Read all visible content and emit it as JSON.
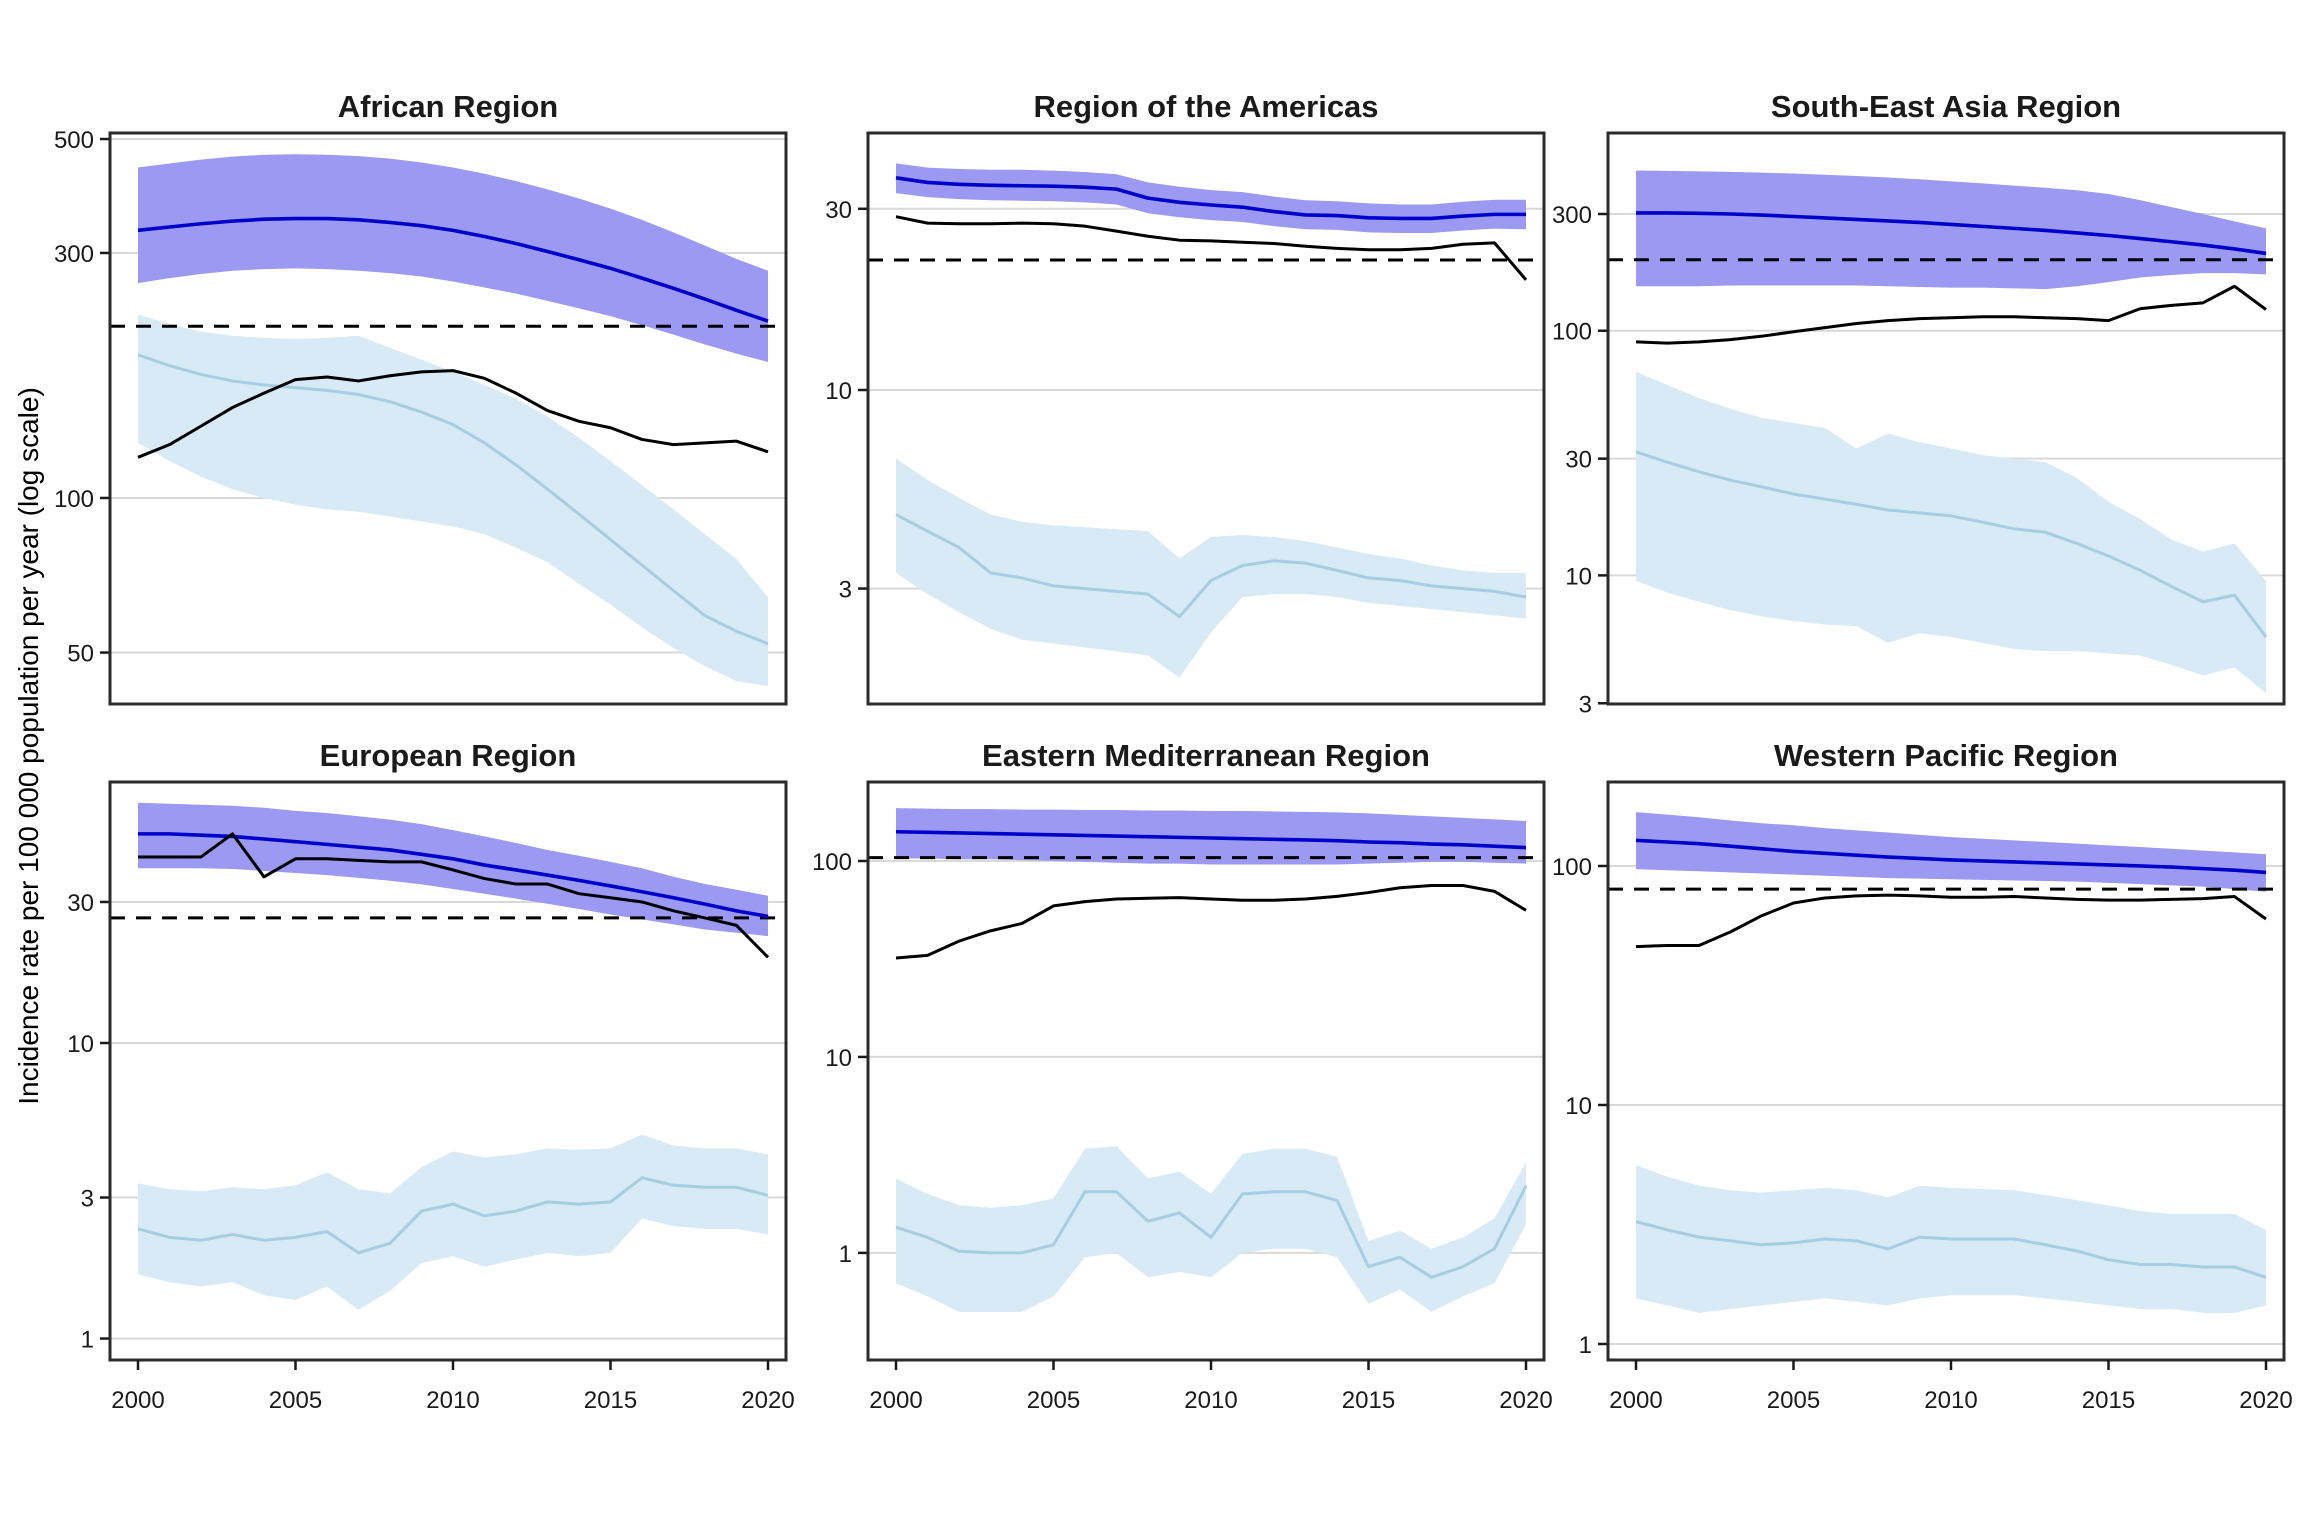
{
  "chart_data": {
    "type": "line",
    "ylabel": "Incidence rate per 100 000 population per year (log scale)",
    "x": [
      2000,
      2001,
      2002,
      2003,
      2004,
      2005,
      2006,
      2007,
      2008,
      2009,
      2010,
      2011,
      2012,
      2013,
      2014,
      2015,
      2016,
      2017,
      2018,
      2019,
      2020
    ],
    "xticks": [
      "2000",
      "2005",
      "2010",
      "2015",
      "2020"
    ],
    "grid": true,
    "legend": "none",
    "colors": {
      "estimate_line": "#0000CC",
      "estimate_ribbon": "#9B99F2",
      "black_line": "#000000",
      "dashed_line": "#000000",
      "light_blue_line": "#A6CEE3",
      "light_blue_ribbon": "#D8EAF6",
      "gridline": "#D9D9D9",
      "panel_border": "#2B2B2B",
      "background": "#FFFFFF"
    },
    "panels": [
      {
        "title": "African Region",
        "ylim": [
          39.7,
          513.7
        ],
        "yticks": [
          "500",
          "300",
          "100",
          "50"
        ],
        "dashed_value": 216,
        "series": {
          "estimate": [
            332,
            337,
            342,
            346,
            349,
            350,
            350,
            348,
            344,
            339,
            332,
            323,
            313,
            302,
            291,
            280,
            268,
            256,
            244,
            232,
            221
          ],
          "estimate_hi": [
            440,
            448,
            456,
            462,
            466,
            467,
            466,
            463,
            458,
            450,
            440,
            428,
            414,
            399,
            383,
            366,
            348,
            329,
            310,
            292,
            277
          ],
          "estimate_lo": [
            262,
            268,
            273,
            277,
            279,
            280,
            279,
            277,
            274,
            270,
            264,
            257,
            250,
            242,
            234,
            226,
            217,
            208,
            199,
            191,
            184
          ],
          "black_line": [
            120,
            127,
            138,
            150,
            160,
            170,
            172,
            169,
            173,
            176,
            177,
            171,
            160,
            148,
            141,
            137,
            130,
            127,
            128,
            129,
            123
          ],
          "light_blue": [
            190,
            181,
            174,
            169,
            166,
            164,
            162,
            159,
            154,
            147,
            139,
            128,
            116,
            104,
            93,
            83,
            74,
            66,
            59,
            55,
            52
          ],
          "light_blue_hi": [
            228,
            218,
            211,
            207,
            205,
            204,
            205,
            207,
            196,
            186,
            176,
            166,
            156,
            144,
            131,
            118,
            106,
            95,
            85,
            76,
            64
          ],
          "light_blue_lo": [
            128,
            118,
            110,
            104,
            100,
            97,
            95,
            94,
            92,
            90,
            88,
            85,
            80,
            75,
            68,
            62,
            56,
            51,
            47,
            44,
            43
          ]
        }
      },
      {
        "title": "Region of the Americas",
        "ylim": [
          1.49,
          47.5
        ],
        "yticks": [
          "30",
          "10",
          "3"
        ],
        "dashed_value": 22,
        "series": {
          "estimate": [
            36.2,
            35.2,
            34.8,
            34.6,
            34.5,
            34.4,
            34.2,
            33.8,
            32,
            31.2,
            30.7,
            30.3,
            29.5,
            28.9,
            28.8,
            28.4,
            28.3,
            28.3,
            28.7,
            29,
            29
          ],
          "estimate_hi": [
            39.5,
            38.5,
            38.2,
            38,
            38,
            37.8,
            37.5,
            37,
            35.2,
            34.3,
            33.6,
            33.2,
            32.3,
            31.6,
            31.4,
            31,
            30.8,
            30.8,
            31.3,
            31.7,
            31.7
          ],
          "estimate_lo": [
            33,
            32.2,
            31.8,
            31.6,
            31.5,
            31.4,
            31.2,
            30.8,
            29.2,
            28.5,
            28,
            27.7,
            27,
            26.5,
            26.4,
            26,
            25.9,
            25.9,
            26.3,
            26.6,
            26.5
          ],
          "black_line": [
            28.6,
            27.5,
            27.4,
            27.4,
            27.5,
            27.4,
            27,
            26.2,
            25.4,
            24.8,
            24.7,
            24.5,
            24.3,
            23.9,
            23.6,
            23.4,
            23.4,
            23.6,
            24.2,
            24.4,
            19.5
          ],
          "light_blue": [
            4.7,
            4.25,
            3.85,
            3.3,
            3.2,
            3.05,
            3,
            2.95,
            2.9,
            2.53,
            3.15,
            3.45,
            3.55,
            3.5,
            3.35,
            3.2,
            3.15,
            3.05,
            3,
            2.95,
            2.85
          ],
          "light_blue_hi": [
            6.6,
            5.8,
            5.2,
            4.7,
            4.5,
            4.4,
            4.35,
            4.3,
            4.25,
            3.6,
            4.1,
            4.15,
            4.1,
            4,
            3.85,
            3.7,
            3.6,
            3.45,
            3.35,
            3.3,
            3.3
          ],
          "light_blue_lo": [
            3.3,
            2.9,
            2.6,
            2.35,
            2.2,
            2.15,
            2.1,
            2.05,
            2,
            1.75,
            2.3,
            2.85,
            2.9,
            2.9,
            2.85,
            2.75,
            2.7,
            2.65,
            2.6,
            2.55,
            2.5
          ]
        }
      },
      {
        "title": "South-East Asia Region",
        "ylim": [
          2.98,
          643
        ],
        "yticks": [
          "300",
          "100",
          "30",
          "10",
          "3"
        ],
        "dashed_value": 195,
        "series": {
          "estimate": [
            303,
            303,
            302,
            300,
            297,
            293,
            289,
            285,
            281,
            277,
            272,
            267,
            262,
            257,
            251,
            245,
            238,
            231,
            224,
            216,
            207
          ],
          "estimate_hi": [
            452,
            450,
            448,
            446,
            443,
            439,
            434,
            429,
            423,
            416,
            408,
            400,
            392,
            384,
            375,
            362,
            342,
            320,
            300,
            280,
            262
          ],
          "estimate_lo": [
            152,
            152,
            152,
            153,
            153,
            153,
            153,
            153,
            152,
            151,
            150,
            150,
            149,
            148,
            152,
            158,
            165,
            169,
            172,
            172,
            170
          ],
          "black_line": [
            90,
            89,
            90,
            92,
            95,
            99,
            103,
            107,
            110,
            112,
            113,
            114,
            114,
            113,
            112,
            110,
            123,
            127,
            130,
            152,
            122
          ],
          "light_blue": [
            32,
            29,
            26.5,
            24.5,
            23,
            21.5,
            20.5,
            19.5,
            18.5,
            18,
            17.5,
            16.5,
            15.5,
            15,
            13.5,
            12,
            10.5,
            9,
            7.8,
            8.3,
            5.6
          ],
          "light_blue_hi": [
            68,
            60,
            53,
            48,
            44,
            42,
            40,
            33,
            38,
            35,
            33,
            31,
            30,
            29,
            25,
            20,
            17,
            14,
            12.5,
            13.5,
            9.5
          ],
          "light_blue_lo": [
            9.5,
            8.5,
            7.8,
            7.2,
            6.8,
            6.5,
            6.3,
            6.2,
            5.3,
            5.8,
            5.6,
            5.3,
            5,
            4.9,
            4.9,
            4.8,
            4.7,
            4.3,
            3.9,
            4.2,
            3.3
          ]
        }
      },
      {
        "title": "European Region",
        "ylim": [
          0.846,
          76.4
        ],
        "yticks": [
          "30",
          "10",
          "3",
          "1"
        ],
        "dashed_value": 26.5,
        "series": {
          "estimate": [
            51,
            51,
            50.5,
            50,
            49,
            48,
            47,
            46,
            45,
            43.5,
            42,
            40,
            38.5,
            37,
            35.5,
            34,
            32.5,
            31,
            29.5,
            28,
            26.8
          ],
          "estimate_hi": [
            65,
            64.5,
            64,
            63.5,
            62.5,
            61,
            60,
            58.5,
            57,
            55,
            52.5,
            50,
            47.5,
            45,
            43,
            41,
            39,
            36.5,
            34.5,
            33,
            31.5
          ],
          "estimate_lo": [
            39,
            39,
            39,
            38.8,
            38.2,
            37.6,
            37,
            36.2,
            35.4,
            34.4,
            33.2,
            32,
            30.8,
            29.6,
            28.4,
            27.2,
            26.2,
            25.2,
            24.2,
            23.6,
            23
          ],
          "black_line": [
            42.6,
            42.6,
            42.6,
            51,
            36.5,
            42,
            42,
            41.5,
            41,
            41,
            38.5,
            36,
            34.5,
            34.5,
            32,
            31,
            30,
            28,
            26.5,
            25,
            19.5
          ],
          "light_blue": [
            2.35,
            2.2,
            2.15,
            2.25,
            2.15,
            2.2,
            2.3,
            1.95,
            2.1,
            2.7,
            2.85,
            2.6,
            2.7,
            2.9,
            2.85,
            2.9,
            3.5,
            3.3,
            3.25,
            3.25,
            3.05
          ],
          "light_blue_hi": [
            3.35,
            3.2,
            3.15,
            3.25,
            3.2,
            3.3,
            3.65,
            3.2,
            3.1,
            3.8,
            4.3,
            4.1,
            4.2,
            4.4,
            4.35,
            4.4,
            4.9,
            4.5,
            4.4,
            4.4,
            4.2
          ],
          "light_blue_lo": [
            1.65,
            1.55,
            1.5,
            1.55,
            1.4,
            1.35,
            1.5,
            1.25,
            1.45,
            1.8,
            1.9,
            1.75,
            1.85,
            1.95,
            1.9,
            1.95,
            2.55,
            2.4,
            2.35,
            2.35,
            2.25
          ]
        }
      },
      {
        "title": "Eastern Mediterranean Region",
        "ylim": [
          0.284,
          253
        ],
        "yticks": [
          "100",
          "10",
          "1"
        ],
        "dashed_value": 104,
        "series": {
          "estimate": [
            141,
            140,
            139,
            138,
            137,
            136,
            135,
            134,
            133,
            132,
            131,
            130,
            129,
            128,
            127,
            125,
            124,
            122,
            121,
            119,
            117
          ],
          "estimate_hi": [
            186,
            185,
            184,
            184,
            183,
            183,
            182,
            182,
            181,
            181,
            180,
            180,
            179,
            178,
            177,
            175,
            172,
            169,
            166,
            163,
            160
          ],
          "estimate_lo": [
            103,
            103,
            102,
            102,
            101,
            100,
            99,
            98,
            97,
            97,
            96,
            96,
            96,
            96,
            96,
            97,
            98,
            99,
            99,
            98,
            97
          ],
          "black_line": [
            32,
            33,
            39,
            44,
            48,
            59,
            62,
            64,
            64.5,
            65,
            64,
            63,
            63,
            64,
            66,
            69,
            73,
            75,
            75,
            70,
            56
          ],
          "light_blue": [
            1.35,
            1.2,
            1.02,
            1,
            1,
            1.1,
            2.05,
            2.05,
            1.45,
            1.6,
            1.2,
            2,
            2.05,
            2.05,
            1.85,
            0.85,
            0.95,
            0.75,
            0.85,
            1.05,
            2.2
          ],
          "light_blue_hi": [
            2.4,
            2,
            1.75,
            1.7,
            1.75,
            1.9,
            3.4,
            3.5,
            2.4,
            2.6,
            2,
            3.2,
            3.4,
            3.4,
            3.1,
            1.15,
            1.3,
            1.05,
            1.2,
            1.5,
            2.9
          ],
          "light_blue_lo": [
            0.7,
            0.6,
            0.5,
            0.5,
            0.5,
            0.6,
            0.95,
            1,
            0.75,
            0.8,
            0.75,
            1,
            1.05,
            1.05,
            0.95,
            0.55,
            0.65,
            0.5,
            0.6,
            0.7,
            1.4
          ]
        }
      },
      {
        "title": "Western Pacific Region",
        "ylim": [
          0.857,
          224.6
        ],
        "yticks": [
          "100",
          "10",
          "1"
        ],
        "dashed_value": 80,
        "series": {
          "estimate": [
            128,
            126,
            124,
            121,
            118,
            115,
            113,
            111,
            109,
            107.5,
            106,
            105,
            104,
            103,
            102,
            101,
            100,
            99,
            97.5,
            96,
            94
          ],
          "estimate_hi": [
            168,
            164,
            160,
            155,
            151,
            148,
            144,
            141,
            138,
            135,
            132,
            130,
            128,
            126,
            124,
            122,
            120,
            118,
            116,
            114,
            112
          ],
          "estimate_lo": [
            97,
            96,
            95,
            94,
            93,
            92,
            91,
            90,
            89,
            88.5,
            88,
            87.5,
            87,
            86.5,
            86,
            85,
            84,
            83,
            82,
            80,
            78
          ],
          "black_line": [
            46,
            46.5,
            46.5,
            53,
            62,
            70,
            73.5,
            75,
            75.5,
            75,
            74,
            74,
            74.5,
            73.5,
            72.5,
            72,
            72,
            72.5,
            73,
            74.5,
            60
          ],
          "light_blue": [
            3.25,
            3,
            2.8,
            2.7,
            2.6,
            2.65,
            2.75,
            2.7,
            2.5,
            2.8,
            2.75,
            2.75,
            2.75,
            2.6,
            2.45,
            2.25,
            2.15,
            2.15,
            2.1,
            2.1,
            1.9
          ],
          "light_blue_hi": [
            5.6,
            5,
            4.6,
            4.4,
            4.3,
            4.4,
            4.5,
            4.4,
            4.1,
            4.6,
            4.5,
            4.45,
            4.4,
            4.2,
            4,
            3.8,
            3.6,
            3.5,
            3.5,
            3.5,
            3
          ],
          "light_blue_lo": [
            1.55,
            1.45,
            1.35,
            1.4,
            1.45,
            1.5,
            1.55,
            1.5,
            1.45,
            1.55,
            1.6,
            1.6,
            1.6,
            1.55,
            1.5,
            1.45,
            1.4,
            1.4,
            1.35,
            1.35,
            1.45
          ]
        }
      }
    ]
  }
}
